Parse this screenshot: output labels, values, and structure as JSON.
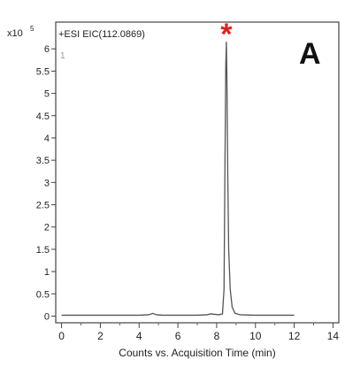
{
  "chart_data": {
    "type": "line",
    "panel_label": "A",
    "trace_label": "+ESI EIC(112.0869)",
    "trace_index": "1",
    "y_multiplier": {
      "base": "x10",
      "exponent": "5"
    },
    "xlabel": "Counts vs. Acquisition Time (min)",
    "ylabel": "",
    "xlim": [
      -0.3,
      14.3
    ],
    "ylim": [
      -0.15,
      6.6
    ],
    "x_ticks": [
      0,
      2,
      4,
      6,
      8,
      10,
      12,
      14
    ],
    "x_tick_labels": [
      "0",
      "2",
      "4",
      "6",
      "8",
      "10",
      "12",
      "14"
    ],
    "y_ticks": [
      0,
      0.5,
      1,
      1.5,
      2,
      2.5,
      3,
      3.5,
      4,
      4.5,
      5,
      5.5,
      6
    ],
    "y_tick_labels": [
      "0",
      "0.5",
      "1",
      "1.5",
      "2",
      "2.5",
      "3",
      "3.5",
      "4",
      "4.5",
      "5",
      "5.5",
      "6"
    ],
    "grid": false,
    "marker": {
      "symbol": "*",
      "x": 8.5,
      "color": "#e0201f"
    },
    "series": [
      {
        "color": "#555555",
        "x": [
          0,
          1,
          2,
          3,
          4,
          4.5,
          4.7,
          4.9,
          5.2,
          6,
          7,
          7.5,
          7.7,
          7.9,
          8.1,
          8.3,
          8.38,
          8.43,
          8.47,
          8.5,
          8.53,
          8.57,
          8.62,
          8.7,
          8.8,
          8.95,
          9.2,
          10,
          11,
          12
        ],
        "y": [
          0.02,
          0.02,
          0.02,
          0.02,
          0.02,
          0.03,
          0.06,
          0.03,
          0.02,
          0.02,
          0.02,
          0.03,
          0.05,
          0.04,
          0.03,
          0.05,
          0.6,
          3.5,
          5.6,
          6.15,
          5.3,
          3.3,
          1.5,
          0.6,
          0.2,
          0.06,
          0.03,
          0.02,
          0.02,
          0.02
        ]
      }
    ]
  }
}
